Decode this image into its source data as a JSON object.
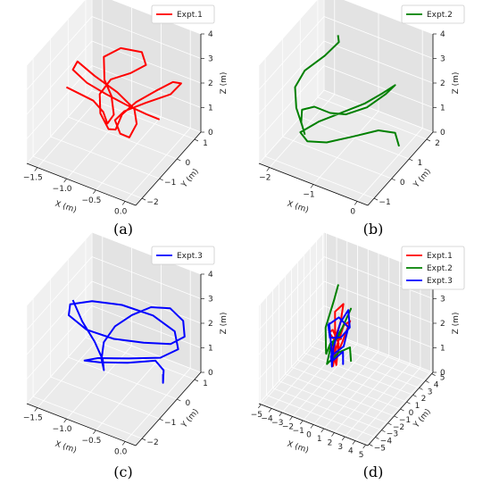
{
  "chart_data": [
    {
      "id": "a",
      "type": "line3d",
      "caption": "(a)",
      "legend": [
        {
          "name": "Expt.1",
          "color": "#ff0000"
        }
      ],
      "xlabel": "X (m)",
      "ylabel": "Y (m)",
      "zlabel": "Z (m)",
      "xticks": [
        -1.5,
        -1.0,
        -0.5,
        0.0
      ],
      "yticks": [
        -2,
        -1,
        0,
        1
      ],
      "zticks": [
        0,
        1,
        2,
        3,
        4
      ],
      "xticklabels": [
        "−1.5",
        "−1.0",
        "−0.5",
        "0.0"
      ],
      "yticklabels": [
        "−2",
        "−1",
        "0",
        "1"
      ],
      "zticklabels": [
        "0",
        "1",
        "2",
        "3",
        "4"
      ],
      "series": [
        {
          "name": "Expt.1",
          "color": "#ff0000",
          "points": [
            [
              -1.65,
              -0.2,
              1.4
            ],
            [
              -1.4,
              -0.3,
              1.45
            ],
            [
              -1.1,
              -0.5,
              1.6
            ],
            [
              -0.9,
              -0.6,
              1.4
            ],
            [
              -0.8,
              -0.7,
              1.1
            ],
            [
              -0.75,
              -0.5,
              1.35
            ],
            [
              -0.85,
              -0.3,
              1.85
            ],
            [
              -1.0,
              -0.2,
              2.3
            ],
            [
              -1.1,
              0.1,
              2.9
            ],
            [
              -0.9,
              0.4,
              3.2
            ],
            [
              -0.6,
              0.6,
              3.15
            ],
            [
              -0.5,
              0.5,
              2.8
            ],
            [
              -0.7,
              0.3,
              2.45
            ],
            [
              -0.95,
              0.0,
              2.2
            ],
            [
              -1.05,
              -0.3,
              1.75
            ],
            [
              -0.95,
              -0.6,
              1.3
            ],
            [
              -0.75,
              -0.8,
              1.0
            ],
            [
              -0.6,
              -0.9,
              1.2
            ],
            [
              -0.55,
              -0.7,
              1.7
            ],
            [
              -0.4,
              -0.4,
              2.1
            ],
            [
              -0.15,
              -0.1,
              2.55
            ],
            [
              0.05,
              0.2,
              2.85
            ],
            [
              0.1,
              0.5,
              2.6
            ],
            [
              -0.05,
              0.4,
              2.1
            ],
            [
              -0.35,
              0.0,
              1.8
            ],
            [
              -0.6,
              -0.4,
              1.55
            ],
            [
              -0.7,
              -0.6,
              1.25
            ],
            [
              -0.55,
              -0.8,
              1.0
            ],
            [
              -0.35,
              -0.95,
              1.15
            ],
            [
              -0.3,
              -0.7,
              1.55
            ],
            [
              -0.4,
              -0.5,
              1.9
            ],
            [
              -0.75,
              -0.3,
              2.1
            ],
            [
              -1.2,
              -0.1,
              2.2
            ],
            [
              -1.55,
              0.1,
              2.3
            ],
            [
              -1.6,
              0.0,
              2.0
            ],
            [
              -1.3,
              -0.2,
              1.9
            ],
            [
              -0.9,
              -0.4,
              1.95
            ],
            [
              -0.5,
              -0.6,
              2.05
            ],
            [
              -0.1,
              -0.8,
              2.2
            ],
            [
              0.15,
              -0.9,
              2.3
            ]
          ]
        }
      ]
    },
    {
      "id": "b",
      "type": "line3d",
      "caption": "(b)",
      "legend": [
        {
          "name": "Expt.2",
          "color": "#008000"
        }
      ],
      "xlabel": "X (m)",
      "ylabel": "Y (m)",
      "zlabel": "Z (m)",
      "xticks": [
        -2,
        -1,
        0
      ],
      "yticks": [
        -1,
        0,
        1,
        2
      ],
      "zticks": [
        0,
        1,
        2,
        3,
        4
      ],
      "xticklabels": [
        "−2",
        "−1",
        "0"
      ],
      "yticklabels": [
        "−1",
        "0",
        "1",
        "2"
      ],
      "zticklabels": [
        "0",
        "1",
        "2",
        "3",
        "4"
      ],
      "series": [
        {
          "name": "Expt.2",
          "color": "#008000",
          "points": [
            [
              -1.5,
              1.3,
              3.6
            ],
            [
              -1.4,
              1.1,
              3.55
            ],
            [
              -1.6,
              0.8,
              3.1
            ],
            [
              -1.9,
              0.4,
              2.6
            ],
            [
              -2.0,
              0.1,
              2.1
            ],
            [
              -1.85,
              -0.2,
              1.6
            ],
            [
              -1.6,
              -0.5,
              1.3
            ],
            [
              -1.5,
              -0.6,
              1.1
            ],
            [
              -1.7,
              -0.3,
              1.2
            ],
            [
              -1.8,
              0.0,
              1.4
            ],
            [
              -1.6,
              0.2,
              1.5
            ],
            [
              -1.2,
              0.1,
              1.6
            ],
            [
              -0.8,
              0.0,
              1.9
            ],
            [
              -0.4,
              0.2,
              2.3
            ],
            [
              -0.1,
              0.5,
              2.8
            ],
            [
              0.0,
              0.8,
              3.0
            ],
            [
              -0.2,
              0.6,
              2.7
            ],
            [
              -0.5,
              0.3,
              2.3
            ],
            [
              -0.9,
              0.0,
              1.9
            ],
            [
              -1.3,
              -0.3,
              1.5
            ],
            [
              -1.6,
              -0.6,
              1.1
            ],
            [
              -1.4,
              -0.7,
              0.95
            ],
            [
              -1.0,
              -0.6,
              1.1
            ],
            [
              -0.5,
              -0.3,
              1.45
            ],
            [
              -0.1,
              0.1,
              1.65
            ],
            [
              0.2,
              0.3,
              1.6
            ],
            [
              0.25,
              0.4,
              1.0
            ]
          ]
        }
      ]
    },
    {
      "id": "c",
      "type": "line3d",
      "caption": "(c)",
      "legend": [
        {
          "name": "Expt.3",
          "color": "#0000ff"
        }
      ],
      "xlabel": "X (m)",
      "ylabel": "Y (m)",
      "zlabel": "Z (m)",
      "xticks": [
        -1.5,
        -1.0,
        -0.5,
        0.0
      ],
      "yticks": [
        -2,
        -1,
        0,
        1
      ],
      "zticks": [
        0,
        1,
        2,
        3,
        4
      ],
      "xticklabels": [
        "−1.5",
        "−1.0",
        "−0.5",
        "0.0"
      ],
      "yticklabels": [
        "−2",
        "−1",
        "0",
        "1"
      ],
      "zticklabels": [
        "0",
        "1",
        "2",
        "3",
        "4"
      ],
      "series": [
        {
          "name": "Expt.3",
          "color": "#0000ff",
          "points": [
            [
              -1.6,
              0.0,
              2.4
            ],
            [
              -1.35,
              -0.3,
              2.0
            ],
            [
              -1.05,
              -0.6,
              1.7
            ],
            [
              -0.85,
              -0.8,
              1.3
            ],
            [
              -0.8,
              -0.9,
              1.0
            ],
            [
              -0.9,
              -0.7,
              1.2
            ],
            [
              -0.95,
              -0.4,
              1.6
            ],
            [
              -0.85,
              -0.1,
              2.1
            ],
            [
              -0.65,
              0.2,
              2.5
            ],
            [
              -0.4,
              0.45,
              2.85
            ],
            [
              -0.1,
              0.55,
              3.0
            ],
            [
              0.15,
              0.45,
              2.8
            ],
            [
              0.25,
              0.2,
              2.45
            ],
            [
              0.1,
              -0.1,
              2.25
            ],
            [
              -0.3,
              -0.3,
              2.1
            ],
            [
              -0.75,
              -0.5,
              2.0
            ],
            [
              -1.2,
              -0.55,
              2.0
            ],
            [
              -1.55,
              -0.4,
              2.15
            ],
            [
              -1.6,
              -0.15,
              2.35
            ],
            [
              -1.3,
              0.1,
              2.55
            ],
            [
              -0.85,
              0.3,
              2.65
            ],
            [
              -0.35,
              0.4,
              2.6
            ],
            [
              0.05,
              0.3,
              2.4
            ],
            [
              0.2,
              0.0,
              2.05
            ],
            [
              0.0,
              -0.35,
              1.8
            ],
            [
              -0.45,
              -0.65,
              1.6
            ],
            [
              -0.9,
              -0.9,
              1.4
            ],
            [
              -1.1,
              -1.0,
              1.2
            ],
            [
              -0.9,
              -0.8,
              1.15
            ],
            [
              -0.5,
              -0.55,
              1.3
            ],
            [
              -0.1,
              -0.3,
              1.55
            ],
            [
              0.1,
              -0.5,
              1.5
            ],
            [
              0.15,
              -0.7,
              1.2
            ],
            [
              0.15,
              -0.7,
              1.55
            ]
          ]
        }
      ]
    },
    {
      "id": "d",
      "type": "line3d",
      "caption": "(d)",
      "legend": [
        {
          "name": "Expt.1",
          "color": "#ff0000"
        },
        {
          "name": "Expt.2",
          "color": "#008000"
        },
        {
          "name": "Expt.3",
          "color": "#0000ff"
        }
      ],
      "xlabel": "X (m)",
      "ylabel": "Y (m)",
      "zlabel": "Z (m)",
      "xticks": [
        -5,
        -4,
        -3,
        -2,
        -1,
        0,
        1,
        2,
        3,
        4,
        5
      ],
      "yticks": [
        -5,
        -4,
        -3,
        -2,
        -1,
        0,
        1,
        2,
        3,
        4,
        5
      ],
      "zticks": [
        0,
        1,
        2,
        3,
        4
      ],
      "xticklabels": [
        "−5",
        "−4",
        "−3",
        "−2",
        "−1",
        "0",
        "1",
        "2",
        "3",
        "4",
        "5"
      ],
      "yticklabels": [
        "−5",
        "−4",
        "−3",
        "−2",
        "−1",
        "0",
        "1",
        "2",
        "3",
        "4",
        "5"
      ],
      "zticklabels": [
        "0",
        "1",
        "2",
        "3",
        "4"
      ],
      "series": [
        {
          "name": "Expt.1",
          "color": "#ff0000",
          "points": [
            [
              -1.6,
              -0.2,
              1.4
            ],
            [
              -1.1,
              -0.5,
              1.6
            ],
            [
              -0.8,
              -0.7,
              1.1
            ],
            [
              -0.85,
              -0.3,
              1.85
            ],
            [
              -1.1,
              0.1,
              2.9
            ],
            [
              -0.6,
              0.6,
              3.15
            ],
            [
              -0.7,
              0.3,
              2.45
            ],
            [
              -1.05,
              -0.3,
              1.75
            ],
            [
              -0.75,
              -0.8,
              1.0
            ],
            [
              -0.55,
              -0.7,
              1.7
            ],
            [
              -0.15,
              -0.1,
              2.55
            ],
            [
              0.1,
              0.5,
              2.6
            ],
            [
              -0.35,
              0.0,
              1.8
            ],
            [
              -0.7,
              -0.6,
              1.25
            ],
            [
              -0.35,
              -0.95,
              1.15
            ],
            [
              -0.4,
              -0.5,
              1.9
            ],
            [
              -1.2,
              -0.1,
              2.2
            ],
            [
              -1.6,
              0.0,
              2.0
            ],
            [
              -0.9,
              -0.4,
              1.95
            ],
            [
              -0.1,
              -0.8,
              2.2
            ],
            [
              0.15,
              -0.9,
              2.3
            ]
          ]
        },
        {
          "name": "Expt.2",
          "color": "#008000",
          "points": [
            [
              -1.5,
              1.3,
              3.6
            ],
            [
              -1.6,
              0.8,
              3.1
            ],
            [
              -2.0,
              0.1,
              2.1
            ],
            [
              -1.6,
              -0.5,
              1.3
            ],
            [
              -1.7,
              -0.3,
              1.2
            ],
            [
              -1.6,
              0.2,
              1.5
            ],
            [
              -0.8,
              0.0,
              1.9
            ],
            [
              -0.1,
              0.5,
              2.8
            ],
            [
              0.0,
              0.8,
              3.0
            ],
            [
              -0.5,
              0.3,
              2.3
            ],
            [
              -1.3,
              -0.3,
              1.5
            ],
            [
              -1.4,
              -0.7,
              0.95
            ],
            [
              -0.5,
              -0.3,
              1.45
            ],
            [
              0.2,
              0.3,
              1.6
            ],
            [
              0.25,
              0.4,
              1.0
            ]
          ]
        },
        {
          "name": "Expt.3",
          "color": "#0000ff",
          "points": [
            [
              -1.6,
              0.0,
              2.4
            ],
            [
              -1.05,
              -0.6,
              1.7
            ],
            [
              -0.8,
              -0.9,
              1.0
            ],
            [
              -0.95,
              -0.4,
              1.6
            ],
            [
              -0.65,
              0.2,
              2.5
            ],
            [
              -0.1,
              0.55,
              3.0
            ],
            [
              0.25,
              0.2,
              2.45
            ],
            [
              -0.3,
              -0.3,
              2.1
            ],
            [
              -1.2,
              -0.55,
              2.0
            ],
            [
              -1.6,
              -0.15,
              2.35
            ],
            [
              -0.85,
              0.3,
              2.65
            ],
            [
              0.05,
              0.3,
              2.4
            ],
            [
              0.0,
              -0.35,
              1.8
            ],
            [
              -0.9,
              -0.9,
              1.4
            ],
            [
              -0.9,
              -0.8,
              1.15
            ],
            [
              -0.1,
              -0.3,
              1.55
            ],
            [
              0.15,
              -0.7,
              1.2
            ],
            [
              0.15,
              -0.7,
              1.55
            ]
          ]
        }
      ]
    }
  ]
}
